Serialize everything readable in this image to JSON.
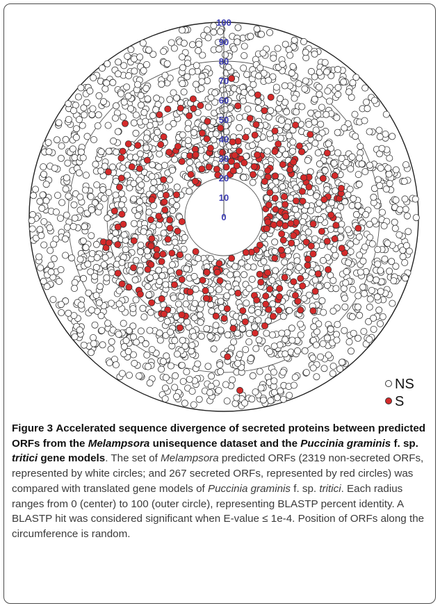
{
  "chart_data": {
    "type": "scatter",
    "subtype": "polar",
    "radial_axis": {
      "min": 0,
      "max": 100,
      "ticks": [
        0,
        10,
        20,
        30,
        40,
        50,
        60,
        70,
        80,
        90,
        100
      ],
      "tick_labels": [
        "0",
        "10",
        "20",
        "30",
        "40",
        "50",
        "60",
        "70",
        "80",
        "90",
        "100"
      ],
      "rings": [
        20,
        40,
        60,
        80,
        100
      ]
    },
    "series": [
      {
        "name": "NS",
        "color": "#ffffff",
        "count": 2319
      },
      {
        "name": "S",
        "color": "#d42a2a",
        "count": 267
      }
    ],
    "legend_placement": "bottom-right"
  },
  "legend": {
    "ns_label": "NS",
    "s_label": "S"
  },
  "caption": {
    "figure_label": "Figure 3",
    "title_part1": "Accelerated sequence divergence of secreted proteins between predicted ORFs from the ",
    "title_italic1": "Melampsora",
    "title_part2": " unisequence dataset and the ",
    "title_italic2": "Puccinia graminis",
    "title_part3": " f. sp. ",
    "title_italic3": "tritici",
    "title_part4": " gene models",
    "body_part1": ". The set of ",
    "body_italic1": "Melampsora",
    "body_part2": " predicted ORFs (2319 non-secreted ORFs, represented by white circles; and 267 secreted ORFs, represented by red circles) was compared with translated gene models of ",
    "body_italic2": "Puccinia graminis",
    "body_part3": " f. sp. ",
    "body_italic3": "tritici",
    "body_part4": ". Each radius ranges from 0 (center) to 100 (outer circle), representing BLASTP percent identity. A BLASTP hit was considered significant when E-value ≤ 1e-4. Position of ORFs along the circumference is random."
  }
}
